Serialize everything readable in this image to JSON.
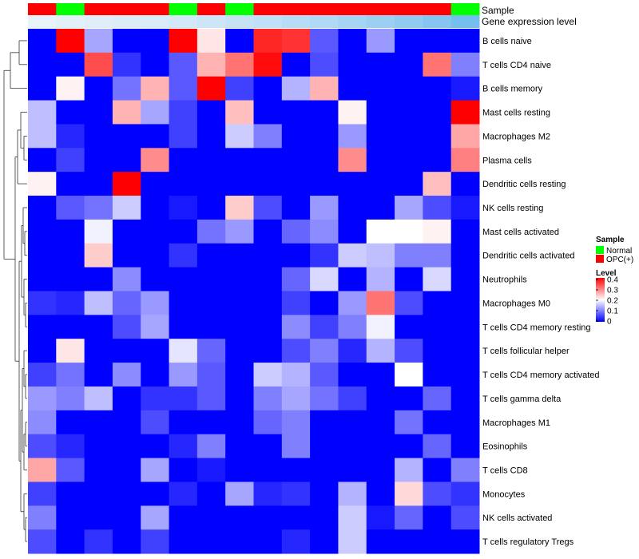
{
  "chart_data": {
    "type": "heatmap",
    "annotation_labels": [
      "Sample",
      "Gene expression level"
    ],
    "rows": [
      "B cells naive",
      "T cells CD4 naive",
      "B cells memory",
      "Mast cells resting",
      "Macrophages M2",
      "Plasma cells",
      "Dendritic cells resting",
      "NK cells resting",
      "Mast cells activated",
      "Dendritic cells activated",
      "Neutrophils",
      "Macrophages M0",
      "T cells CD4 memory resting",
      "T cells follicular helper",
      "T cells CD4 memory activated",
      "T cells gamma delta",
      "Macrophages M1",
      "Eosinophils",
      "T cells CD8",
      "Monocytes",
      "NK cells activated",
      "T cells regulatory  Tregs"
    ],
    "sample_groups": [
      "OPC(+)",
      "Normal",
      "OPC(+)",
      "OPC(+)",
      "OPC(+)",
      "Normal",
      "OPC(+)",
      "Normal",
      "OPC(+)",
      "OPC(+)",
      "OPC(+)",
      "OPC(+)",
      "OPC(+)",
      "OPC(+)",
      "OPC(+)",
      "Normal"
    ],
    "gene_expression_level": [
      0.02,
      0.05,
      0.08,
      0.1,
      0.13,
      0.17,
      0.21,
      0.26,
      0.31,
      0.37,
      0.43,
      0.5,
      0.57,
      0.65,
      0.74,
      0.85
    ],
    "values": [
      [
        0.0,
        0.4,
        0.13,
        0.0,
        0.0,
        0.4,
        0.22,
        0.0,
        0.37,
        0.36,
        0.07,
        0.0,
        0.12,
        0.0,
        0.0,
        0.0
      ],
      [
        0.0,
        0.0,
        0.34,
        0.04,
        0.0,
        0.07,
        0.26,
        0.31,
        0.39,
        0.0,
        0.06,
        0.0,
        0.0,
        0.0,
        0.31,
        0.1
      ],
      [
        0.0,
        0.21,
        0.0,
        0.09,
        0.26,
        0.07,
        0.4,
        0.05,
        0.0,
        0.14,
        0.26,
        0.0,
        0.0,
        0.0,
        0.0,
        0.02
      ],
      [
        0.15,
        0.0,
        0.0,
        0.26,
        0.13,
        0.05,
        0.0,
        0.25,
        0.0,
        0.0,
        0.0,
        0.21,
        0.0,
        0.0,
        0.0,
        0.4
      ],
      [
        0.15,
        0.03,
        0.0,
        0.0,
        0.0,
        0.05,
        0.0,
        0.16,
        0.1,
        0.0,
        0.0,
        0.12,
        0.0,
        0.0,
        0.0,
        0.27
      ],
      [
        0.0,
        0.05,
        0.0,
        0.0,
        0.29,
        0.0,
        0.0,
        0.0,
        0.0,
        0.0,
        0.0,
        0.29,
        0.0,
        0.0,
        0.0,
        0.3
      ],
      [
        0.21,
        0.0,
        0.0,
        0.4,
        0.0,
        0.0,
        0.0,
        0.0,
        0.0,
        0.0,
        0.0,
        0.0,
        0.0,
        0.0,
        0.25,
        0.0
      ],
      [
        0.0,
        0.07,
        0.09,
        0.16,
        0.0,
        0.02,
        0.0,
        0.24,
        0.06,
        0.0,
        0.12,
        0.0,
        0.0,
        0.13,
        0.06,
        0.02
      ],
      [
        0.0,
        0.0,
        0.19,
        0.0,
        0.0,
        0.0,
        0.09,
        0.12,
        0.0,
        0.08,
        0.11,
        0.0,
        0.2,
        0.2,
        0.21,
        0.0
      ],
      [
        0.0,
        0.0,
        0.24,
        0.0,
        0.0,
        0.04,
        0.0,
        0.0,
        0.0,
        0.0,
        0.04,
        0.16,
        0.15,
        0.1,
        0.1,
        0.0
      ],
      [
        0.0,
        0.0,
        0.0,
        0.11,
        0.0,
        0.0,
        0.0,
        0.0,
        0.0,
        0.08,
        0.17,
        0.0,
        0.14,
        0.0,
        0.17,
        0.0
      ],
      [
        0.04,
        0.03,
        0.15,
        0.08,
        0.12,
        0.0,
        0.0,
        0.0,
        0.0,
        0.05,
        0.0,
        0.12,
        0.31,
        0.06,
        0.0,
        0.0
      ],
      [
        0.0,
        0.0,
        0.0,
        0.06,
        0.13,
        0.0,
        0.0,
        0.0,
        0.0,
        0.11,
        0.05,
        0.1,
        0.19,
        0.0,
        0.0,
        0.0
      ],
      [
        0.0,
        0.22,
        0.0,
        0.0,
        0.0,
        0.18,
        0.08,
        0.0,
        0.0,
        0.06,
        0.1,
        0.03,
        0.14,
        0.06,
        0.0,
        0.0
      ],
      [
        0.05,
        0.09,
        0.0,
        0.11,
        0.0,
        0.12,
        0.07,
        0.0,
        0.16,
        0.14,
        0.07,
        0.0,
        0.0,
        0.2,
        0.0,
        0.0
      ],
      [
        0.12,
        0.1,
        0.15,
        0.0,
        0.04,
        0.04,
        0.07,
        0.0,
        0.1,
        0.13,
        0.09,
        0.05,
        0.0,
        0.0,
        0.08,
        0.0
      ],
      [
        0.11,
        0.0,
        0.0,
        0.0,
        0.06,
        0.0,
        0.0,
        0.0,
        0.08,
        0.1,
        0.0,
        0.0,
        0.0,
        0.09,
        0.0,
        0.0
      ],
      [
        0.06,
        0.03,
        0.0,
        0.0,
        0.0,
        0.03,
        0.1,
        0.0,
        0.0,
        0.1,
        0.0,
        0.0,
        0.0,
        0.0,
        0.08,
        0.0
      ],
      [
        0.27,
        0.07,
        0.0,
        0.0,
        0.13,
        0.0,
        0.02,
        0.0,
        0.0,
        0.0,
        0.0,
        0.0,
        0.0,
        0.14,
        0.0,
        0.1
      ],
      [
        0.05,
        0.0,
        0.0,
        0.0,
        0.0,
        0.03,
        0.0,
        0.13,
        0.03,
        0.04,
        0.0,
        0.14,
        0.0,
        0.23,
        0.06,
        0.04
      ],
      [
        0.1,
        0.0,
        0.0,
        0.0,
        0.13,
        0.0,
        0.0,
        0.0,
        0.0,
        0.0,
        0.0,
        0.16,
        0.02,
        0.08,
        0.0,
        0.06
      ],
      [
        0.06,
        0.0,
        0.04,
        0.0,
        0.05,
        0.0,
        0.0,
        0.0,
        0.0,
        0.03,
        0.0,
        0.16,
        0.0,
        0.0,
        0.0,
        0.0
      ]
    ],
    "color_scale": {
      "min": 0,
      "max": 0.4,
      "stops": [
        {
          "value": 0,
          "color": "#0000ff"
        },
        {
          "value": 0.2,
          "color": "#ffffff"
        },
        {
          "value": 0.4,
          "color": "#ff0000"
        }
      ]
    },
    "annotation_gradient": [
      "#eaf3f9",
      "#60b6ee"
    ],
    "legend": {
      "position": "right",
      "sample": {
        "title": "Sample",
        "entries": [
          {
            "label": "Normal",
            "color": "#00ff00"
          },
          {
            "label": "OPC(+)",
            "color": "#ff0000"
          }
        ]
      },
      "level": {
        "title": "Level",
        "ticks": [
          "0.4",
          "0.3",
          "0.2",
          "0.1",
          "0"
        ]
      }
    },
    "dendrogram": "rows"
  }
}
